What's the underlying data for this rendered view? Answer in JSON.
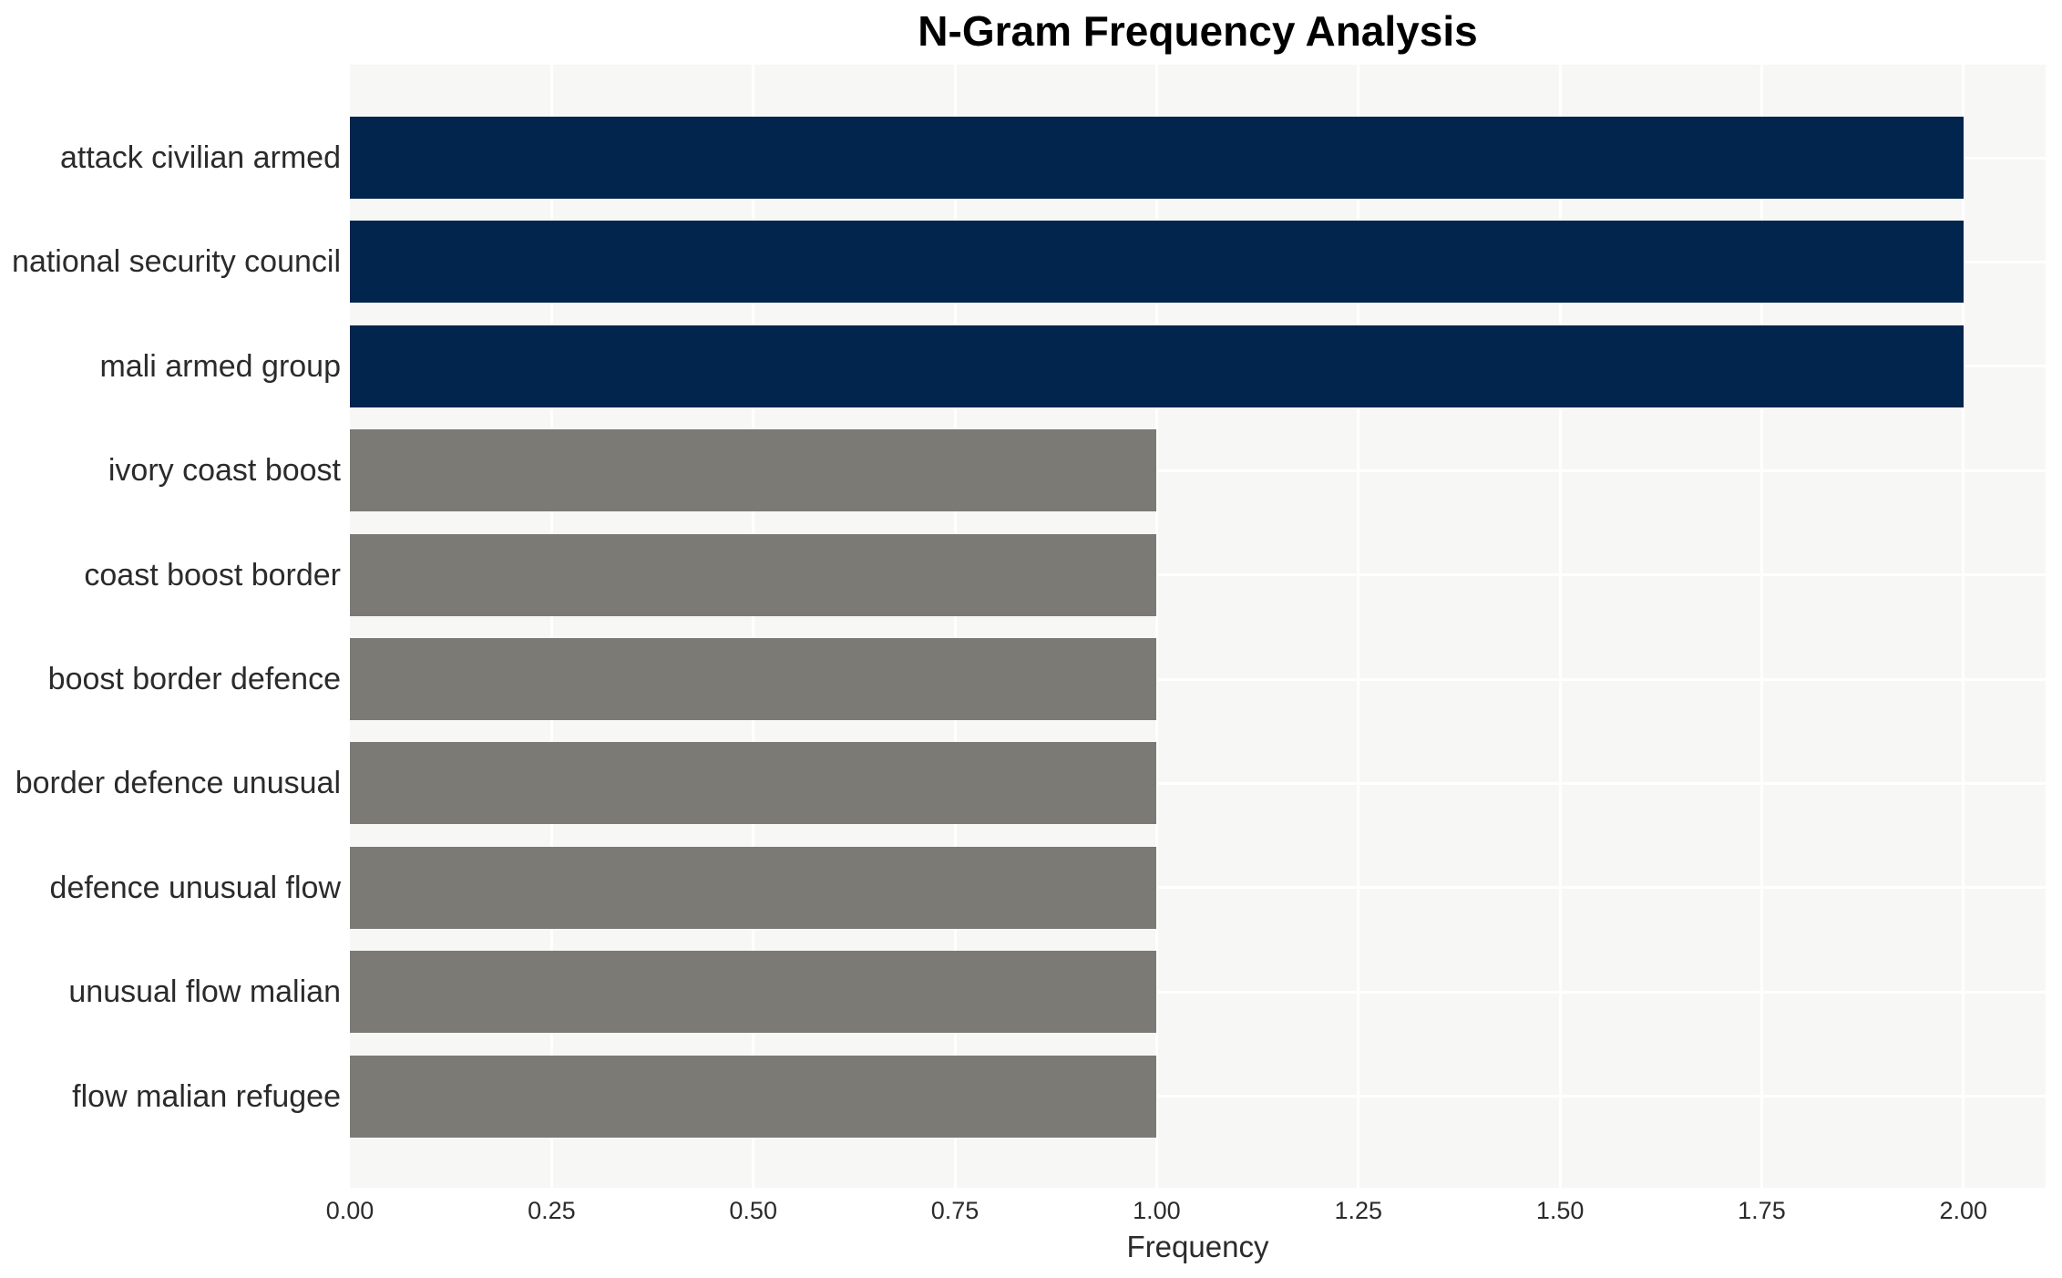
{
  "chart_data": {
    "type": "bar",
    "orientation": "horizontal",
    "title": "N-Gram Frequency Analysis",
    "xlabel": "Frequency",
    "ylabel": "",
    "categories": [
      "attack civilian armed",
      "national security council",
      "mali armed group",
      "ivory coast boost",
      "coast boost border",
      "boost border defence",
      "border defence unusual",
      "defence unusual flow",
      "unusual flow malian",
      "flow malian refugee"
    ],
    "values": [
      2,
      2,
      2,
      1,
      1,
      1,
      1,
      1,
      1,
      1
    ],
    "xticks": [
      0,
      0.25,
      0.5,
      0.75,
      1.0,
      1.25,
      1.5,
      1.75,
      2.0
    ],
    "xtick_labels": [
      "0.00",
      "0.25",
      "0.50",
      "0.75",
      "1.00",
      "1.25",
      "1.50",
      "1.75",
      "2.00"
    ],
    "xlim": [
      0,
      2.1
    ],
    "grid": true,
    "legend": false,
    "bar_colors": [
      "#02254e",
      "#02254e",
      "#02254e",
      "#7b7a74",
      "#7b7a74",
      "#7b7a74",
      "#7b7a74",
      "#7b7a74",
      "#7b7a74",
      "#7b7a74"
    ],
    "styles": {
      "plot_background": "#f7f7f6",
      "grid_color": "#ffffff",
      "text_color": "#2b2b2b",
      "title_color": "#000000"
    }
  }
}
